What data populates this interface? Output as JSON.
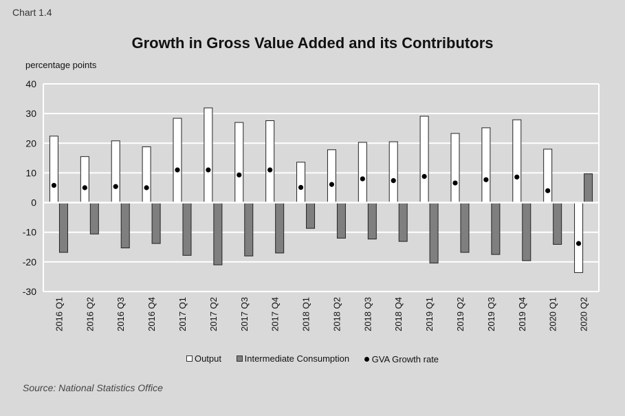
{
  "header": {
    "chart_label": "Chart 1.4",
    "source": "Source: National Statistics Office"
  },
  "colors": {
    "output": "#ffffff",
    "intermediate": "#7f7f7f",
    "gva": "#000000",
    "background": "#d9d9d9"
  },
  "chart_data": {
    "type": "bar",
    "title": "Growth in Gross Value Added and its Contributors",
    "ylabel": "percentage points",
    "xlabel": "",
    "ylim": [
      -30,
      40
    ],
    "yticks": [
      -30,
      -20,
      -10,
      0,
      10,
      20,
      30,
      40
    ],
    "grid": true,
    "legend_position": "bottom",
    "categories": [
      "2016 Q1",
      "2016 Q2",
      "2016 Q3",
      "2016 Q4",
      "2017 Q1",
      "2017 Q2",
      "2017 Q3",
      "2017 Q4",
      "2018 Q1",
      "2018 Q2",
      "2018 Q3",
      "2018 Q4",
      "2019 Q1",
      "2019 Q2",
      "2019 Q3",
      "2019 Q4",
      "2020 Q1",
      "2020 Q2"
    ],
    "series": [
      {
        "name": "Output",
        "type": "bar",
        "values": [
          22.4,
          15.5,
          20.8,
          18.8,
          28.4,
          31.9,
          27.0,
          27.6,
          13.6,
          17.8,
          20.3,
          20.5,
          29.1,
          23.3,
          25.2,
          27.9,
          18.0,
          -23.6
        ]
      },
      {
        "name": "Intermediate Consumption",
        "type": "bar",
        "values": [
          -16.8,
          -10.6,
          -15.3,
          -13.8,
          -17.8,
          -21.0,
          -18.0,
          -17.0,
          -8.7,
          -12.0,
          -12.3,
          -13.1,
          -20.4,
          -16.8,
          -17.5,
          -19.6,
          -14.1,
          9.7
        ]
      },
      {
        "name": "GVA Growth rate",
        "type": "scatter",
        "values": [
          5.8,
          5.0,
          5.4,
          5.0,
          11.0,
          11.0,
          9.3,
          11.0,
          5.1,
          6.1,
          8.0,
          7.4,
          8.8,
          6.6,
          7.7,
          8.6,
          4.0,
          -13.8
        ]
      }
    ]
  }
}
